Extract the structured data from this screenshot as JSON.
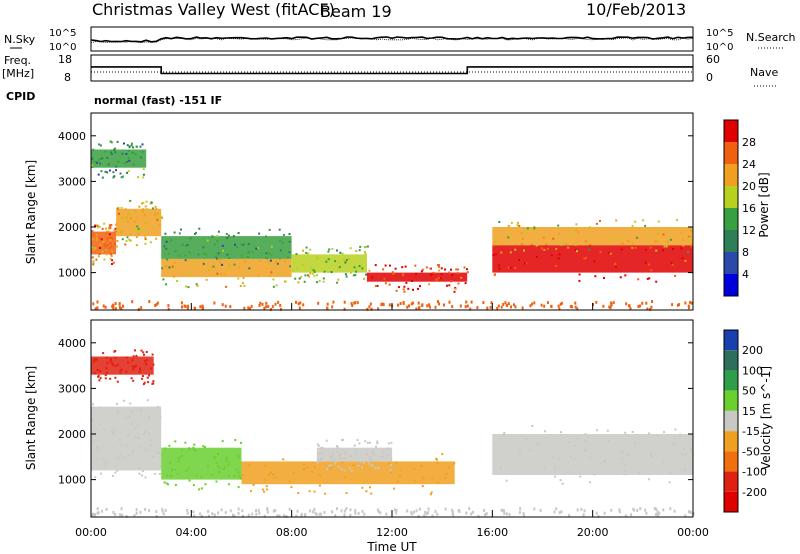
{
  "header": {
    "station": "Christmas Valley West (fitACF)",
    "beam": "Beam 19",
    "date": "10/Feb/2013"
  },
  "noise_panel": {
    "left_label": "N.Sky",
    "right_label": "N.Search",
    "left_ticks": [
      "10^5",
      "10^0"
    ],
    "right_ticks": [
      "10^5",
      "10^0"
    ]
  },
  "freq_panel": {
    "left_label_1": "Freq.",
    "left_label_2": "[MHz]",
    "right_label": "Nave",
    "left_ticks": [
      "18",
      "8"
    ],
    "right_ticks": [
      "60",
      "0"
    ]
  },
  "cpid": {
    "label": "CPID",
    "mode": "normal (fast) -151 IF"
  },
  "power_panel": {
    "ylabel": "Slant Range [km]",
    "yticks": [
      "1000",
      "2000",
      "3000",
      "4000"
    ],
    "colorbar_label": "Power [dB]",
    "colorbar_ticks": [
      "4",
      "8",
      "12",
      "16",
      "20",
      "24",
      "28"
    ],
    "colors": [
      "#0000dd",
      "#2a4aaa",
      "#2e7e58",
      "#38a040",
      "#b8d020",
      "#f0a020",
      "#f06010",
      "#e00000"
    ]
  },
  "velocity_panel": {
    "ylabel": "Slant Range [km]",
    "yticks": [
      "1000",
      "2000",
      "3000",
      "4000"
    ],
    "colorbar_label": "Velocity [m s^-1]",
    "colorbar_ticks": [
      "200",
      "100",
      "50",
      "15",
      "-15",
      "-50",
      "-100",
      "-200"
    ],
    "colors": [
      "#1a40b0",
      "#2e6e5c",
      "#2e9e4a",
      "#6ad030",
      "#c8c8c4",
      "#f0a020",
      "#f07010",
      "#e02010",
      "#e00000"
    ]
  },
  "xaxis": {
    "label": "Time UT",
    "ticks": [
      "00:00",
      "04:00",
      "08:00",
      "12:00",
      "16:00",
      "20:00",
      "00:00"
    ]
  },
  "chart_data": {
    "type": "heatmap",
    "title": "Christmas Valley West (fitACF) Beam 19 10/Feb/2013",
    "xlabel": "Time UT",
    "ylabel": "Slant Range [km]",
    "xlim_hours": [
      0,
      24
    ],
    "ylim_km": [
      180,
      4500
    ],
    "frequency_mhz": [
      {
        "from_hour": 0,
        "to_hour": 2.8,
        "value": 13.5
      },
      {
        "from_hour": 2.8,
        "to_hour": 15.0,
        "value": 10.5
      },
      {
        "from_hour": 15.0,
        "to_hour": 24,
        "value": 13.5
      }
    ],
    "power_bands_db": [
      {
        "t0": 0.0,
        "t1": 1.0,
        "r0": 1400,
        "r1": 1900,
        "power": 24
      },
      {
        "t0": 1.0,
        "t1": 2.8,
        "r0": 1800,
        "r1": 2400,
        "power": 20
      },
      {
        "t0": 0.0,
        "t1": 2.2,
        "r0": 3300,
        "r1": 3700,
        "power": 12
      },
      {
        "t0": 2.8,
        "t1": 8.0,
        "r0": 900,
        "r1": 1300,
        "power": 20
      },
      {
        "t0": 2.8,
        "t1": 8.0,
        "r0": 1300,
        "r1": 1800,
        "power": 12
      },
      {
        "t0": 8.0,
        "t1": 11.0,
        "r0": 1000,
        "r1": 1400,
        "power": 16
      },
      {
        "t0": 11.0,
        "t1": 15.0,
        "r0": 800,
        "r1": 1000,
        "power": 28
      },
      {
        "t0": 16.0,
        "t1": 24.0,
        "r0": 1000,
        "r1": 1600,
        "power": 28
      },
      {
        "t0": 16.0,
        "t1": 24.0,
        "r0": 1600,
        "r1": 2000,
        "power": 20
      }
    ],
    "velocity_bands_ms": [
      {
        "t0": 0.0,
        "t1": 2.8,
        "r0": 1200,
        "r1": 2600,
        "velocity": 0
      },
      {
        "t0": 2.8,
        "t1": 6.0,
        "r0": 1000,
        "r1": 1700,
        "velocity": 40
      },
      {
        "t0": 6.0,
        "t1": 14.5,
        "r0": 900,
        "r1": 1400,
        "velocity": -40
      },
      {
        "t0": 9.0,
        "t1": 12.0,
        "r0": 1400,
        "r1": 1700,
        "velocity": 0
      },
      {
        "t0": 16.0,
        "t1": 24.0,
        "r0": 1100,
        "r1": 2000,
        "velocity": 0
      },
      {
        "t0": 0.0,
        "t1": 2.5,
        "r0": 3300,
        "r1": 3700,
        "velocity": -150
      }
    ]
  }
}
